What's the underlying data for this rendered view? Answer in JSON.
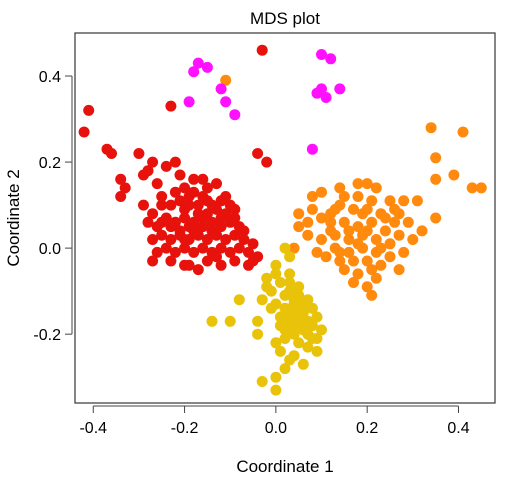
{
  "chart_data": {
    "type": "scatter",
    "title": "MDS plot",
    "xlabel": "Coordinate 1",
    "ylabel": "Coordinate 2",
    "xlim": [
      -0.44,
      0.48
    ],
    "ylim": [
      -0.36,
      0.5
    ],
    "x_ticks": [
      "-0.4",
      "-0.2",
      "0.0",
      "0.2",
      "0.4"
    ],
    "x_tick_values": [
      -0.4,
      -0.2,
      0.0,
      0.2,
      0.4
    ],
    "y_ticks": [
      "0.4",
      "0.2",
      "0.0",
      "-0.2"
    ],
    "y_tick_values": [
      0.4,
      0.2,
      0.0,
      -0.2
    ],
    "grid": false,
    "legend": "none",
    "series": [
      {
        "color": "#e8120c",
        "points": [
          [
            -0.03,
            0.46
          ],
          [
            -0.41,
            0.32
          ],
          [
            -0.42,
            0.27
          ],
          [
            -0.23,
            0.33
          ],
          [
            -0.37,
            0.23
          ],
          [
            -0.36,
            0.22
          ],
          [
            -0.04,
            0.22
          ],
          [
            -0.02,
            0.2
          ],
          [
            -0.3,
            0.22
          ],
          [
            -0.27,
            0.2
          ],
          [
            -0.28,
            0.18
          ],
          [
            -0.22,
            0.2
          ],
          [
            -0.24,
            0.19
          ],
          [
            -0.34,
            0.16
          ],
          [
            -0.33,
            0.14
          ],
          [
            -0.34,
            0.12
          ],
          [
            -0.29,
            0.17
          ],
          [
            -0.26,
            0.15
          ],
          [
            -0.25,
            0.12
          ],
          [
            -0.21,
            0.17
          ],
          [
            -0.18,
            0.16
          ],
          [
            -0.16,
            0.16
          ],
          [
            -0.2,
            0.14
          ],
          [
            -0.18,
            0.13
          ],
          [
            -0.15,
            0.14
          ],
          [
            -0.13,
            0.15
          ],
          [
            -0.11,
            0.12
          ],
          [
            -0.29,
            0.1
          ],
          [
            -0.27,
            0.08
          ],
          [
            -0.25,
            0.1
          ],
          [
            -0.23,
            0.1
          ],
          [
            -0.21,
            0.11
          ],
          [
            -0.19,
            0.1
          ],
          [
            -0.17,
            0.1
          ],
          [
            -0.15,
            0.11
          ],
          [
            -0.13,
            0.09
          ],
          [
            -0.11,
            0.08
          ],
          [
            -0.09,
            0.09
          ],
          [
            -0.28,
            0.06
          ],
          [
            -0.26,
            0.05
          ],
          [
            -0.24,
            0.07
          ],
          [
            -0.22,
            0.06
          ],
          [
            -0.2,
            0.07
          ],
          [
            -0.18,
            0.06
          ],
          [
            -0.16,
            0.07
          ],
          [
            -0.14,
            0.06
          ],
          [
            -0.12,
            0.05
          ],
          [
            -0.1,
            0.06
          ],
          [
            -0.08,
            0.05
          ],
          [
            -0.27,
            0.02
          ],
          [
            -0.25,
            0.03
          ],
          [
            -0.23,
            0.02
          ],
          [
            -0.21,
            0.03
          ],
          [
            -0.19,
            0.02
          ],
          [
            -0.17,
            0.03
          ],
          [
            -0.15,
            0.02
          ],
          [
            -0.13,
            0.03
          ],
          [
            -0.11,
            0.02
          ],
          [
            -0.09,
            0.03
          ],
          [
            -0.07,
            0.02
          ],
          [
            -0.26,
            -0.01
          ],
          [
            -0.24,
            0.0
          ],
          [
            -0.22,
            -0.01
          ],
          [
            -0.2,
            0.0
          ],
          [
            -0.18,
            -0.01
          ],
          [
            -0.16,
            0.0
          ],
          [
            -0.14,
            -0.01
          ],
          [
            -0.12,
            0.0
          ],
          [
            -0.1,
            -0.01
          ],
          [
            -0.08,
            0.0
          ],
          [
            -0.06,
            -0.01
          ],
          [
            -0.05,
            0.01
          ],
          [
            -0.27,
            -0.03
          ],
          [
            -0.23,
            -0.03
          ],
          [
            -0.19,
            -0.04
          ],
          [
            -0.15,
            -0.03
          ],
          [
            -0.12,
            -0.04
          ],
          [
            -0.09,
            -0.03
          ],
          [
            -0.06,
            -0.04
          ],
          [
            -0.04,
            -0.02
          ],
          [
            -0.2,
            0.09
          ],
          [
            -0.22,
            0.13
          ],
          [
            -0.19,
            0.12
          ],
          [
            -0.16,
            0.12
          ],
          [
            -0.14,
            0.1
          ],
          [
            -0.12,
            0.11
          ],
          [
            -0.1,
            0.1
          ],
          [
            -0.17,
            0.08
          ],
          [
            -0.19,
            0.05
          ],
          [
            -0.21,
            0.04
          ],
          [
            -0.23,
            0.05
          ],
          [
            -0.25,
            0.06
          ],
          [
            -0.2,
            0.02
          ],
          [
            -0.18,
            0.04
          ],
          [
            -0.16,
            0.05
          ],
          [
            -0.14,
            0.04
          ],
          [
            -0.12,
            0.07
          ],
          [
            -0.15,
            0.08
          ],
          [
            -0.2,
            -0.04
          ],
          [
            -0.17,
            -0.05
          ],
          [
            -0.09,
            0.07
          ],
          [
            -0.07,
            0.04
          ],
          [
            -0.05,
            -0.03
          ],
          [
            -0.13,
            -0.02
          ]
        ]
      },
      {
        "color": "#ff8a0e",
        "points": [
          [
            -0.11,
            0.39
          ],
          [
            0.34,
            0.28
          ],
          [
            0.41,
            0.27
          ],
          [
            0.39,
            0.17
          ],
          [
            0.35,
            0.21
          ],
          [
            0.45,
            0.14
          ],
          [
            0.43,
            0.14
          ],
          [
            0.35,
            0.16
          ],
          [
            0.31,
            0.11
          ],
          [
            0.2,
            0.15
          ],
          [
            0.22,
            0.14
          ],
          [
            0.18,
            0.15
          ],
          [
            0.14,
            0.14
          ],
          [
            0.1,
            0.13
          ],
          [
            0.08,
            0.12
          ],
          [
            0.15,
            0.12
          ],
          [
            0.18,
            0.12
          ],
          [
            0.21,
            0.11
          ],
          [
            0.25,
            0.11
          ],
          [
            0.28,
            0.11
          ],
          [
            0.27,
            0.08
          ],
          [
            0.35,
            0.07
          ],
          [
            0.26,
            0.06
          ],
          [
            0.23,
            0.08
          ],
          [
            0.2,
            0.09
          ],
          [
            0.17,
            0.09
          ],
          [
            0.14,
            0.1
          ],
          [
            0.12,
            0.08
          ],
          [
            0.1,
            0.07
          ],
          [
            0.08,
            0.09
          ],
          [
            0.07,
            0.06
          ],
          [
            0.05,
            0.05
          ],
          [
            0.12,
            0.04
          ],
          [
            0.15,
            0.06
          ],
          [
            0.18,
            0.05
          ],
          [
            0.21,
            0.06
          ],
          [
            0.24,
            0.04
          ],
          [
            0.27,
            0.03
          ],
          [
            0.3,
            0.02
          ],
          [
            0.32,
            0.04
          ],
          [
            0.07,
            0.03
          ],
          [
            0.1,
            0.02
          ],
          [
            0.13,
            0.03
          ],
          [
            0.16,
            0.02
          ],
          [
            0.19,
            0.03
          ],
          [
            0.22,
            0.02
          ],
          [
            0.25,
            0.01
          ],
          [
            0.28,
            -0.01
          ],
          [
            0.13,
            0.0
          ],
          [
            0.16,
            -0.01
          ],
          [
            0.19,
            0.0
          ],
          [
            0.22,
            -0.01
          ],
          [
            0.11,
            -0.02
          ],
          [
            0.14,
            -0.03
          ],
          [
            0.17,
            -0.03
          ],
          [
            0.2,
            -0.03
          ],
          [
            0.23,
            -0.04
          ],
          [
            0.15,
            -0.05
          ],
          [
            0.18,
            -0.06
          ],
          [
            0.21,
            -0.05
          ],
          [
            0.17,
            -0.08
          ],
          [
            0.2,
            -0.09
          ],
          [
            0.27,
            -0.05
          ],
          [
            0.05,
            0.08
          ],
          [
            0.04,
            0.0
          ],
          [
            0.09,
            -0.01
          ],
          [
            0.12,
            0.06
          ],
          [
            0.19,
            0.08
          ],
          [
            0.24,
            0.07
          ],
          [
            0.29,
            0.06
          ],
          [
            0.16,
            0.04
          ],
          [
            0.2,
            0.04
          ],
          [
            0.14,
            -0.01
          ],
          [
            0.18,
            0.01
          ],
          [
            0.23,
            0.0
          ],
          [
            0.25,
            -0.02
          ],
          [
            0.21,
            -0.11
          ],
          [
            0.22,
            -0.07
          ],
          [
            0.13,
            0.09
          ],
          [
            0.26,
            0.09
          ]
        ]
      },
      {
        "color": "#ff11ff",
        "points": [
          [
            -0.18,
            0.41
          ],
          [
            -0.17,
            0.43
          ],
          [
            -0.15,
            0.42
          ],
          [
            -0.12,
            0.37
          ],
          [
            -0.11,
            0.34
          ],
          [
            -0.09,
            0.31
          ],
          [
            -0.19,
            0.34
          ],
          [
            0.1,
            0.45
          ],
          [
            0.12,
            0.44
          ],
          [
            0.14,
            0.37
          ],
          [
            0.1,
            0.37
          ],
          [
            0.09,
            0.36
          ],
          [
            0.11,
            0.35
          ],
          [
            0.08,
            0.23
          ]
        ]
      },
      {
        "color": "#e8c309",
        "points": [
          [
            0.02,
            0.0
          ],
          [
            0.03,
            -0.02
          ],
          [
            0.0,
            -0.04
          ],
          [
            -0.02,
            -0.07
          ],
          [
            0.01,
            -0.08
          ],
          [
            0.03,
            -0.06
          ],
          [
            -0.01,
            -0.1
          ],
          [
            0.02,
            -0.11
          ],
          [
            0.04,
            -0.12
          ],
          [
            -0.03,
            -0.12
          ],
          [
            -0.08,
            -0.12
          ],
          [
            0.0,
            -0.13
          ],
          [
            0.02,
            -0.14
          ],
          [
            0.04,
            -0.13
          ],
          [
            0.06,
            -0.15
          ],
          [
            0.08,
            -0.14
          ],
          [
            0.01,
            -0.16
          ],
          [
            0.03,
            -0.17
          ],
          [
            0.05,
            -0.16
          ],
          [
            0.07,
            -0.17
          ],
          [
            0.09,
            -0.16
          ],
          [
            -0.04,
            -0.17
          ],
          [
            -0.1,
            -0.17
          ],
          [
            -0.14,
            -0.17
          ],
          [
            -0.04,
            -0.2
          ],
          [
            0.02,
            -0.19
          ],
          [
            0.04,
            -0.2
          ],
          [
            0.06,
            -0.19
          ],
          [
            0.08,
            -0.21
          ],
          [
            0.1,
            -0.19
          ],
          [
            0.05,
            -0.22
          ],
          [
            0.07,
            -0.23
          ],
          [
            0.09,
            -0.24
          ],
          [
            0.0,
            -0.22
          ],
          [
            0.04,
            -0.25
          ],
          [
            0.06,
            -0.27
          ],
          [
            0.02,
            -0.28
          ],
          [
            0.0,
            -0.3
          ],
          [
            -0.03,
            -0.31
          ],
          [
            0.0,
            -0.33
          ],
          [
            0.03,
            -0.26
          ],
          [
            0.01,
            -0.24
          ],
          [
            0.03,
            -0.1
          ],
          [
            0.05,
            -0.11
          ],
          [
            0.06,
            -0.13
          ],
          [
            0.07,
            -0.12
          ],
          [
            0.05,
            -0.14
          ],
          [
            0.03,
            -0.15
          ],
          [
            0.01,
            -0.18
          ],
          [
            0.06,
            -0.18
          ],
          [
            0.08,
            -0.18
          ],
          [
            0.04,
            -0.18
          ],
          [
            0.02,
            -0.21
          ],
          [
            0.07,
            -0.2
          ],
          [
            -0.02,
            -0.09
          ],
          [
            0.0,
            -0.06
          ],
          [
            0.03,
            -0.08
          ],
          [
            -0.01,
            -0.14
          ],
          [
            0.09,
            -0.21
          ],
          [
            0.05,
            -0.09
          ]
        ]
      }
    ]
  }
}
